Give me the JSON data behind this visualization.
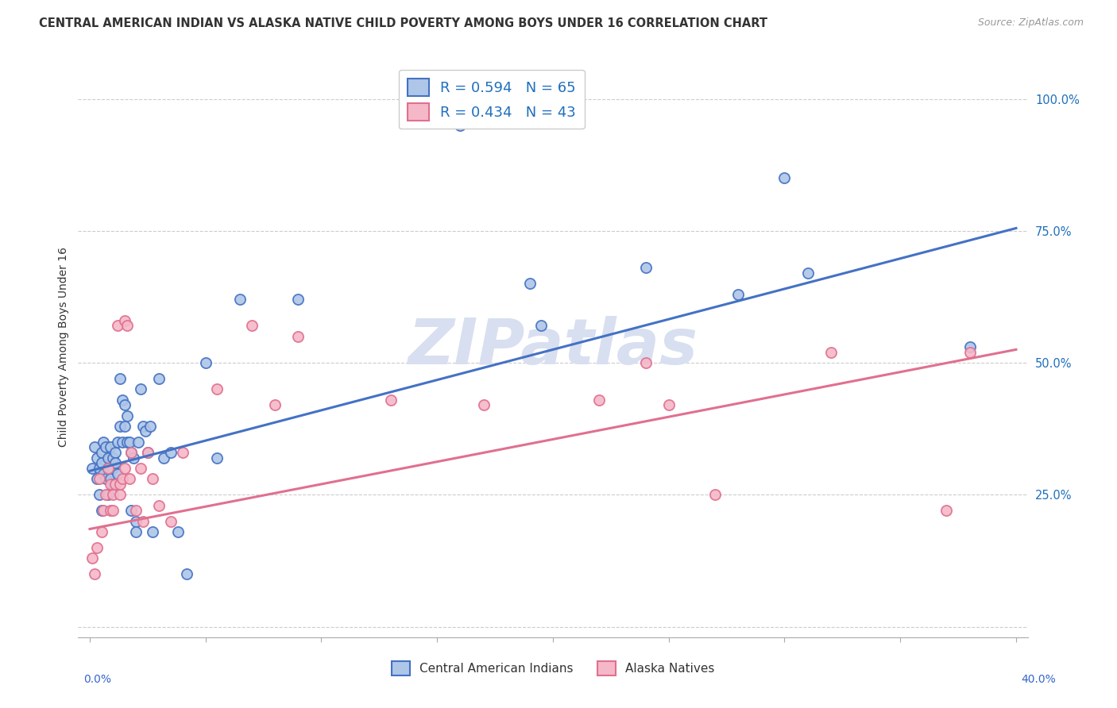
{
  "title": "CENTRAL AMERICAN INDIAN VS ALASKA NATIVE CHILD POVERTY AMONG BOYS UNDER 16 CORRELATION CHART",
  "source": "Source: ZipAtlas.com",
  "ylabel": "Child Poverty Among Boys Under 16",
  "yticks": [
    0.0,
    0.25,
    0.5,
    0.75,
    1.0
  ],
  "ytick_labels": [
    "",
    "25.0%",
    "50.0%",
    "75.0%",
    "100.0%"
  ],
  "xticks": [
    0.0,
    0.05,
    0.1,
    0.15,
    0.2,
    0.25,
    0.3,
    0.35,
    0.4
  ],
  "xlim": [
    -0.005,
    0.405
  ],
  "ylim": [
    -0.02,
    1.08
  ],
  "watermark": "ZIPatlas",
  "series": [
    {
      "name": "Central American Indians",
      "color": "#4472c4",
      "face_color": "#aec6e8",
      "R": 0.594,
      "N": 65,
      "x": [
        0.001,
        0.002,
        0.003,
        0.003,
        0.004,
        0.004,
        0.005,
        0.005,
        0.005,
        0.006,
        0.006,
        0.007,
        0.007,
        0.008,
        0.008,
        0.008,
        0.009,
        0.009,
        0.009,
        0.01,
        0.01,
        0.01,
        0.011,
        0.011,
        0.012,
        0.012,
        0.013,
        0.013,
        0.014,
        0.014,
        0.015,
        0.015,
        0.016,
        0.016,
        0.017,
        0.018,
        0.018,
        0.019,
        0.02,
        0.02,
        0.021,
        0.022,
        0.023,
        0.024,
        0.025,
        0.026,
        0.027,
        0.03,
        0.032,
        0.035,
        0.038,
        0.042,
        0.05,
        0.055,
        0.065,
        0.09,
        0.16,
        0.175,
        0.19,
        0.195,
        0.24,
        0.28,
        0.3,
        0.31,
        0.38
      ],
      "y": [
        0.3,
        0.34,
        0.28,
        0.32,
        0.3,
        0.25,
        0.33,
        0.31,
        0.22,
        0.35,
        0.29,
        0.34,
        0.28,
        0.32,
        0.3,
        0.25,
        0.3,
        0.34,
        0.28,
        0.3,
        0.32,
        0.27,
        0.33,
        0.31,
        0.35,
        0.29,
        0.47,
        0.38,
        0.43,
        0.35,
        0.42,
        0.38,
        0.4,
        0.35,
        0.35,
        0.33,
        0.22,
        0.32,
        0.2,
        0.18,
        0.35,
        0.45,
        0.38,
        0.37,
        0.33,
        0.38,
        0.18,
        0.47,
        0.32,
        0.33,
        0.18,
        0.1,
        0.5,
        0.32,
        0.62,
        0.62,
        0.95,
        1.0,
        0.65,
        0.57,
        0.68,
        0.63,
        0.85,
        0.67,
        0.53
      ],
      "line_x": [
        0.0,
        0.4
      ],
      "line_y": [
        0.295,
        0.755
      ]
    },
    {
      "name": "Alaska Natives",
      "color": "#e07090",
      "face_color": "#f5b8c8",
      "R": 0.434,
      "N": 43,
      "x": [
        0.001,
        0.002,
        0.003,
        0.004,
        0.005,
        0.006,
        0.007,
        0.008,
        0.009,
        0.009,
        0.01,
        0.01,
        0.011,
        0.012,
        0.013,
        0.013,
        0.014,
        0.015,
        0.015,
        0.016,
        0.017,
        0.018,
        0.02,
        0.022,
        0.023,
        0.025,
        0.027,
        0.03,
        0.035,
        0.04,
        0.055,
        0.07,
        0.08,
        0.09,
        0.13,
        0.17,
        0.22,
        0.24,
        0.25,
        0.27,
        0.32,
        0.37,
        0.38
      ],
      "y": [
        0.13,
        0.1,
        0.15,
        0.28,
        0.18,
        0.22,
        0.25,
        0.3,
        0.22,
        0.27,
        0.25,
        0.22,
        0.27,
        0.57,
        0.25,
        0.27,
        0.28,
        0.58,
        0.3,
        0.57,
        0.28,
        0.33,
        0.22,
        0.3,
        0.2,
        0.33,
        0.28,
        0.23,
        0.2,
        0.33,
        0.45,
        0.57,
        0.42,
        0.55,
        0.43,
        0.42,
        0.43,
        0.5,
        0.42,
        0.25,
        0.52,
        0.22,
        0.52
      ],
      "line_x": [
        0.0,
        0.4
      ],
      "line_y": [
        0.185,
        0.525
      ]
    }
  ],
  "legend_text_color": "#1f6fbd",
  "title_fontsize": 10.5,
  "source_fontsize": 9,
  "watermark_color": "#d8dff0",
  "watermark_fontsize": 58,
  "background_color": "#ffffff",
  "grid_color": "#cccccc"
}
